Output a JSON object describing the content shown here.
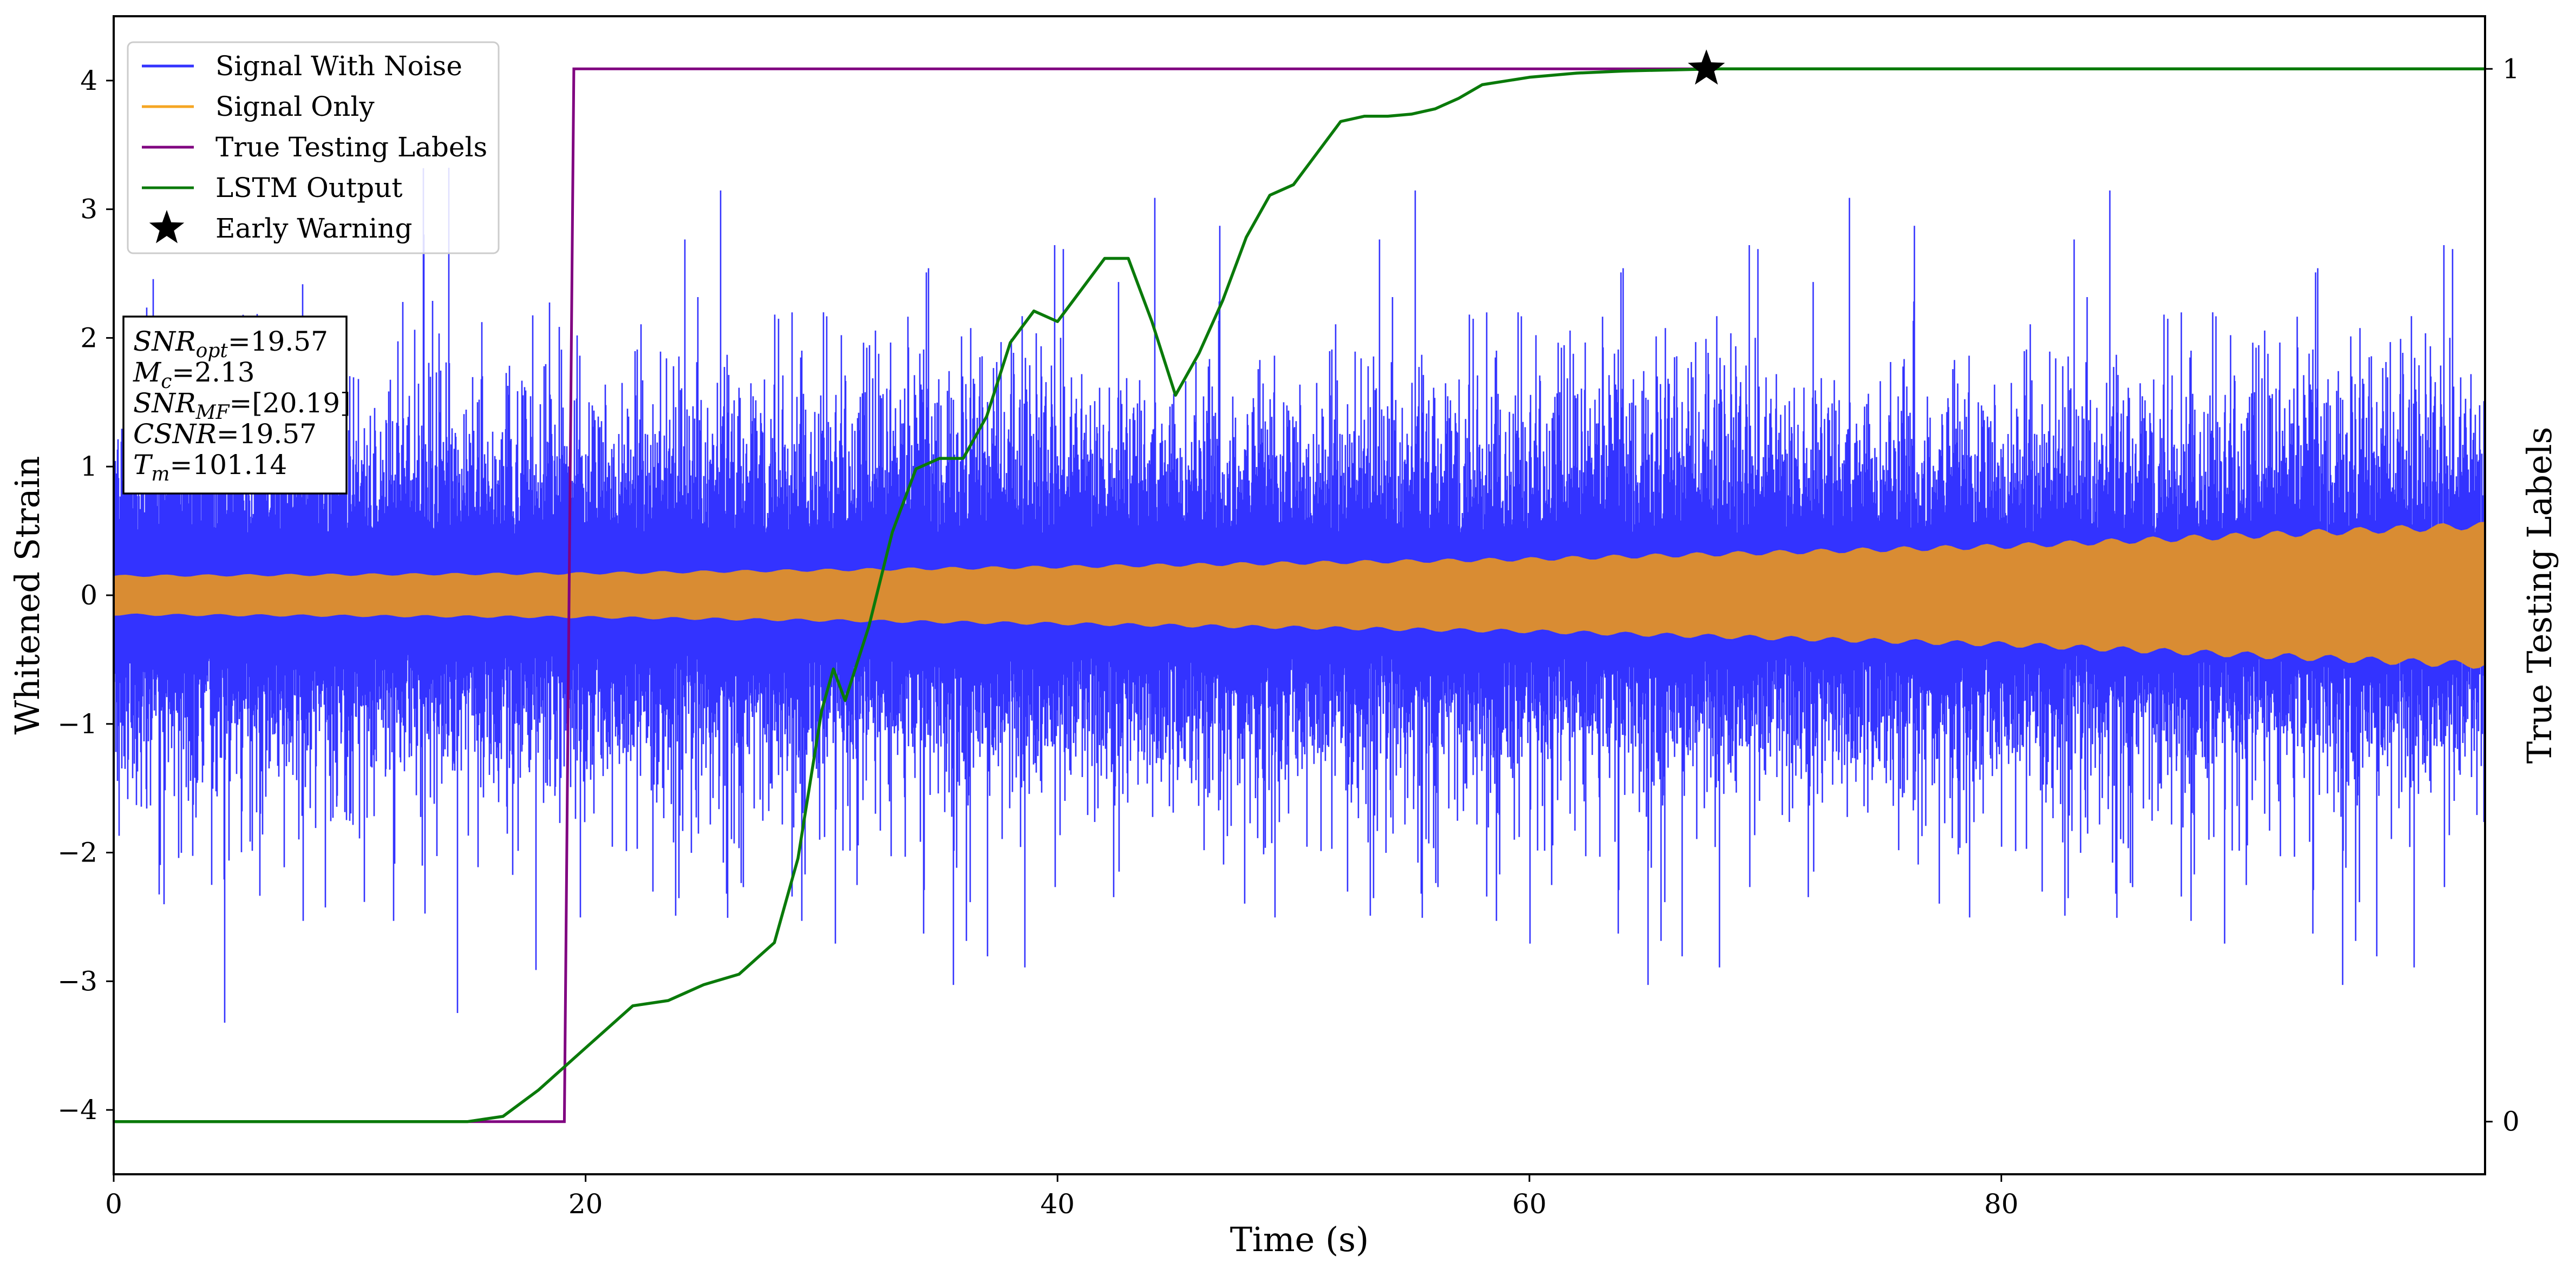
{
  "chart_data": {
    "type": "line",
    "xlabel": "Time (s)",
    "ylabel": "Whitened Strain",
    "y2label": "True Testing Labels",
    "xlim": [
      0,
      100.5
    ],
    "ylim": [
      -4.5,
      4.5
    ],
    "y2lim": [
      -0.05,
      1.05
    ],
    "xticks": [
      0,
      20,
      40,
      60,
      80
    ],
    "yticks": [
      -4,
      -3,
      -2,
      -1,
      0,
      1,
      2,
      3,
      4
    ],
    "y2ticks": [
      0,
      1
    ],
    "grid": false,
    "legend_position": "top-left",
    "colors": {
      "noise": "#3333ff",
      "signal": "#d98c33",
      "labels": "#800080",
      "lstm": "#0a7a0a",
      "warning": "#000000"
    },
    "series": [
      {
        "name": "Signal With Noise",
        "color": "#3333ff",
        "kind": "noise",
        "typical_abs_peak": 2.0,
        "max_abs": 4.05
      },
      {
        "name": "Signal Only",
        "color": "#f5a623",
        "kind": "chirp_envelope",
        "envelope_x": [
          0,
          20,
          40,
          60,
          80,
          100
        ],
        "envelope_y": [
          0.15,
          0.17,
          0.22,
          0.28,
          0.38,
          0.54
        ]
      },
      {
        "name": "True Testing Labels",
        "color": "#800080",
        "axis": "right",
        "x": [
          0,
          19.1,
          19.5,
          100.5
        ],
        "y": [
          0,
          0,
          1,
          1
        ]
      },
      {
        "name": "LSTM Output",
        "color": "#0a7a0a",
        "axis": "right",
        "x": [
          0,
          15,
          16.5,
          18,
          20,
          22,
          23.5,
          25,
          26.5,
          28,
          29,
          30,
          30.5,
          31,
          32,
          33,
          34,
          35,
          36,
          37,
          38,
          39,
          40,
          41,
          42,
          43,
          44,
          45,
          46,
          47,
          48,
          49,
          50,
          51,
          52,
          53,
          54,
          55,
          56,
          57,
          58,
          60,
          62,
          64,
          66,
          68,
          70,
          75,
          80,
          90,
          100.5
        ],
        "y": [
          0,
          0,
          0.005,
          0.03,
          0.07,
          0.11,
          0.115,
          0.13,
          0.14,
          0.17,
          0.25,
          0.39,
          0.43,
          0.4,
          0.47,
          0.56,
          0.62,
          0.63,
          0.63,
          0.67,
          0.74,
          0.77,
          0.76,
          0.79,
          0.82,
          0.82,
          0.76,
          0.69,
          0.73,
          0.78,
          0.84,
          0.88,
          0.89,
          0.92,
          0.95,
          0.955,
          0.955,
          0.957,
          0.962,
          0.972,
          0.985,
          0.992,
          0.996,
          0.998,
          0.999,
          1.0,
          1.0,
          1.0,
          1.0,
          1.0,
          1.0
        ]
      },
      {
        "name": "Early Warning",
        "color": "#000000",
        "kind": "marker",
        "marker": "star",
        "axis": "right",
        "x": 67.5,
        "y": 1.0
      }
    ],
    "annotation_box": {
      "lines": [
        {
          "label": "SNR",
          "sub": "opt",
          "value": "=19.57"
        },
        {
          "label": "M",
          "sub": "c",
          "value": "=2.13"
        },
        {
          "label": "SNR",
          "sub": "MF",
          "value": "=[20.19]"
        },
        {
          "label": "CSNR",
          "sub": "",
          "value": "=19.57"
        },
        {
          "label": "T",
          "sub": "m",
          "value": "=101.14"
        }
      ]
    }
  }
}
